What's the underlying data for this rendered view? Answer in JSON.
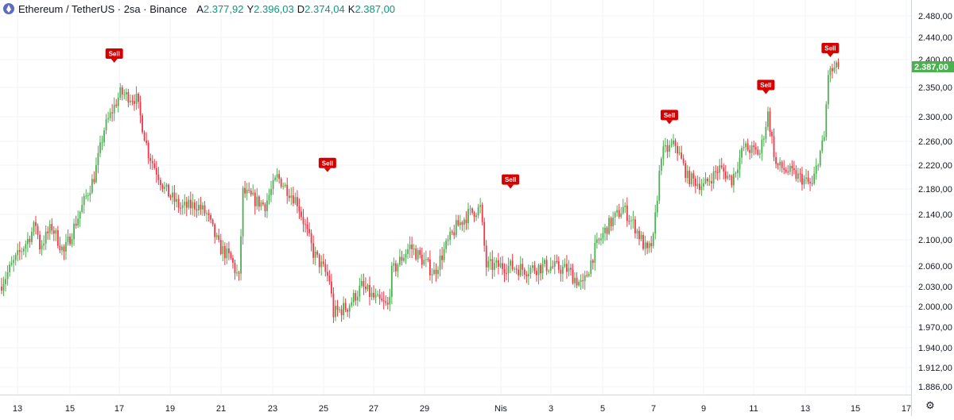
{
  "legend": {
    "symbol": "Ethereum / TetherUS · 2sa · Binance",
    "open_label": "A",
    "open": "2.377,92",
    "high_label": "Y",
    "high": "2.396,03",
    "low_label": "D",
    "low": "2.374,04",
    "close_label": "K",
    "close": "2.387,00"
  },
  "colors": {
    "up": "#4caf50",
    "down": "#f23645",
    "sell": "#d50000",
    "grid": "#f0f3fa",
    "last": "#4caf50"
  },
  "icons": {
    "settings": "gear-icon"
  },
  "chart_data": {
    "type": "candlestick",
    "ylim": [
      1870,
      2500
    ],
    "y_ticks": [
      {
        "v": 2480,
        "label": "2.480,00"
      },
      {
        "v": 2440,
        "label": "2.440,00"
      },
      {
        "v": 2400,
        "label": "2.400,00"
      },
      {
        "v": 2350,
        "label": "2.350,00"
      },
      {
        "v": 2300,
        "label": "2.300,00"
      },
      {
        "v": 2260,
        "label": "2.260,00"
      },
      {
        "v": 2220,
        "label": "2.220,00"
      },
      {
        "v": 2180,
        "label": "2.180,00"
      },
      {
        "v": 2140,
        "label": "2.140,00"
      },
      {
        "v": 2100,
        "label": "2.100,00"
      },
      {
        "v": 2060,
        "label": "2.060,00"
      },
      {
        "v": 2030,
        "label": "2.030,00"
      },
      {
        "v": 2000,
        "label": "2.000,00"
      },
      {
        "v": 1970,
        "label": "1.970,00"
      },
      {
        "v": 1940,
        "label": "1.940,00"
      },
      {
        "v": 1912,
        "label": "1.912,00"
      },
      {
        "v": 1886,
        "label": "1.886,00"
      }
    ],
    "x_ticks": [
      "13",
      "15",
      "17",
      "19",
      "21",
      "23",
      "25",
      "27",
      "29",
      "Nis",
      "3",
      "5",
      "7",
      "9",
      "11",
      "13",
      "15",
      "17"
    ],
    "last_price": {
      "value": 2387,
      "label": "2.387,00"
    },
    "anchors": [
      [
        0,
        2030
      ],
      [
        14,
        2100
      ],
      [
        18,
        2125
      ],
      [
        20,
        2090
      ],
      [
        26,
        2120
      ],
      [
        32,
        2080
      ],
      [
        42,
        2160
      ],
      [
        47,
        2200
      ],
      [
        52,
        2280
      ],
      [
        60,
        2340
      ],
      [
        68,
        2330
      ],
      [
        74,
        2240
      ],
      [
        82,
        2180
      ],
      [
        90,
        2150
      ],
      [
        98,
        2155
      ],
      [
        103,
        2140
      ],
      [
        109,
        2090
      ],
      [
        115,
        2070
      ],
      [
        119,
        2040
      ],
      [
        121,
        2175
      ],
      [
        128,
        2160
      ],
      [
        132,
        2155
      ],
      [
        138,
        2200
      ],
      [
        148,
        2160
      ],
      [
        156,
        2080
      ],
      [
        164,
        2040
      ],
      [
        166,
        1990
      ],
      [
        173,
        2000
      ],
      [
        180,
        2030
      ],
      [
        187,
        2010
      ],
      [
        193,
        2000
      ],
      [
        195,
        2050
      ],
      [
        204,
        2090
      ],
      [
        216,
        2050
      ],
      [
        222,
        2090
      ],
      [
        227,
        2120
      ],
      [
        233,
        2140
      ],
      [
        239,
        2150
      ],
      [
        242,
        2060
      ],
      [
        252,
        2060
      ],
      [
        262,
        2055
      ],
      [
        272,
        2060
      ],
      [
        282,
        2055
      ],
      [
        290,
        2030
      ],
      [
        296,
        2085
      ],
      [
        302,
        2120
      ],
      [
        310,
        2150
      ],
      [
        316,
        2120
      ],
      [
        322,
        2080
      ],
      [
        325,
        2100
      ],
      [
        329,
        2240
      ],
      [
        336,
        2255
      ],
      [
        342,
        2200
      ],
      [
        350,
        2185
      ],
      [
        358,
        2215
      ],
      [
        364,
        2195
      ],
      [
        370,
        2250
      ],
      [
        378,
        2240
      ],
      [
        382,
        2305
      ],
      [
        386,
        2220
      ],
      [
        392,
        2210
      ],
      [
        400,
        2195
      ],
      [
        404,
        2185
      ],
      [
        407,
        2230
      ],
      [
        410,
        2265
      ],
      [
        412,
        2375
      ],
      [
        416,
        2385
      ]
    ],
    "sell_markers": [
      {
        "label": "Sell",
        "bar": 56,
        "price": 2380
      },
      {
        "label": "Sell",
        "bar": 162,
        "price": 2195
      },
      {
        "label": "Sell",
        "bar": 253,
        "price": 2168
      },
      {
        "label": "Sell",
        "bar": 332,
        "price": 2275
      },
      {
        "label": "Sell",
        "bar": 380,
        "price": 2325
      },
      {
        "label": "Sell",
        "bar": 412,
        "price": 2390
      }
    ]
  }
}
